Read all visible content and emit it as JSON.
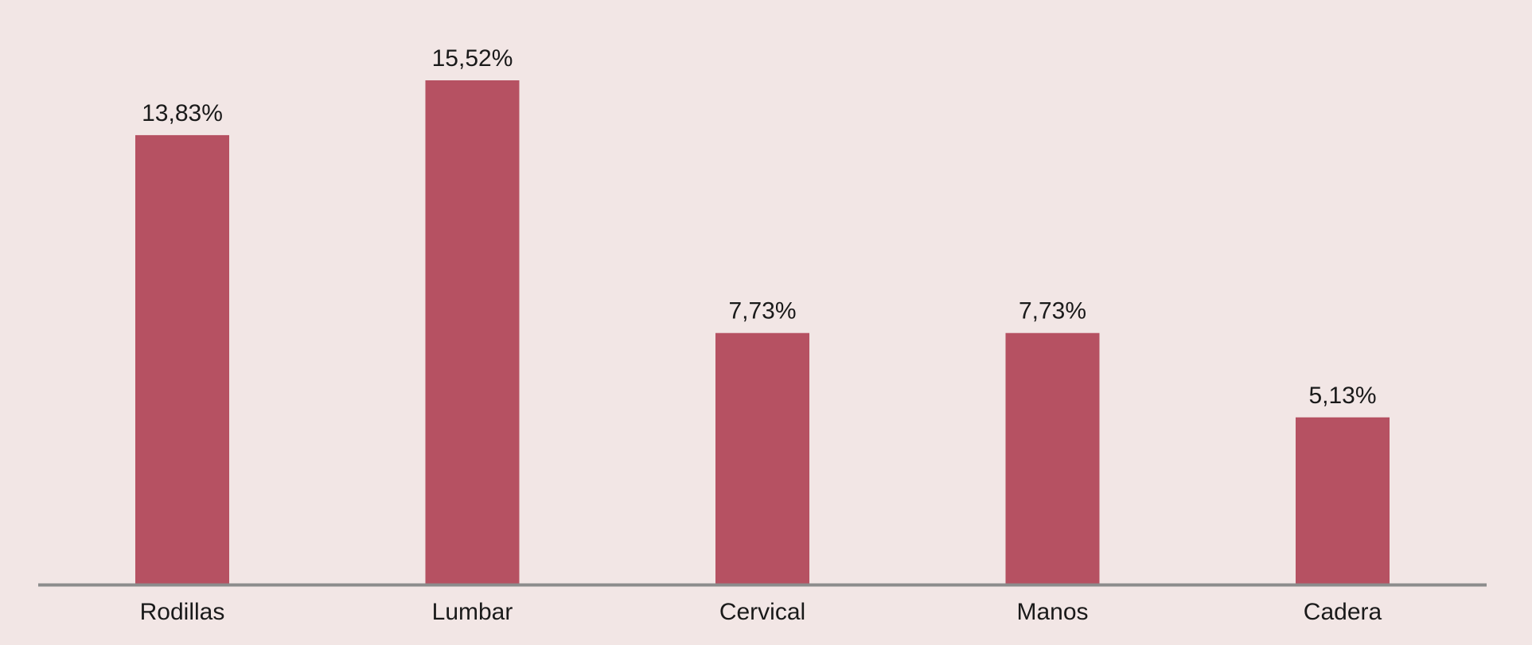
{
  "colors": {
    "background": "#f2e6e5",
    "bar": "#b65162",
    "axis": "#8c8c8c",
    "text": "#1a1a1a"
  },
  "chart_data": {
    "type": "bar",
    "categories": [
      "Rodillas",
      "Lumbar",
      "Cervical",
      "Manos",
      "Cadera"
    ],
    "values": [
      13.83,
      15.52,
      7.73,
      7.73,
      5.13
    ],
    "value_labels": [
      "13,83%",
      "15,52%",
      "7,73%",
      "7,73%",
      "5,13%"
    ],
    "title": "",
    "xlabel": "",
    "ylabel": "",
    "ylim": [
      0,
      15.52
    ],
    "grid": false,
    "legend": "none"
  }
}
